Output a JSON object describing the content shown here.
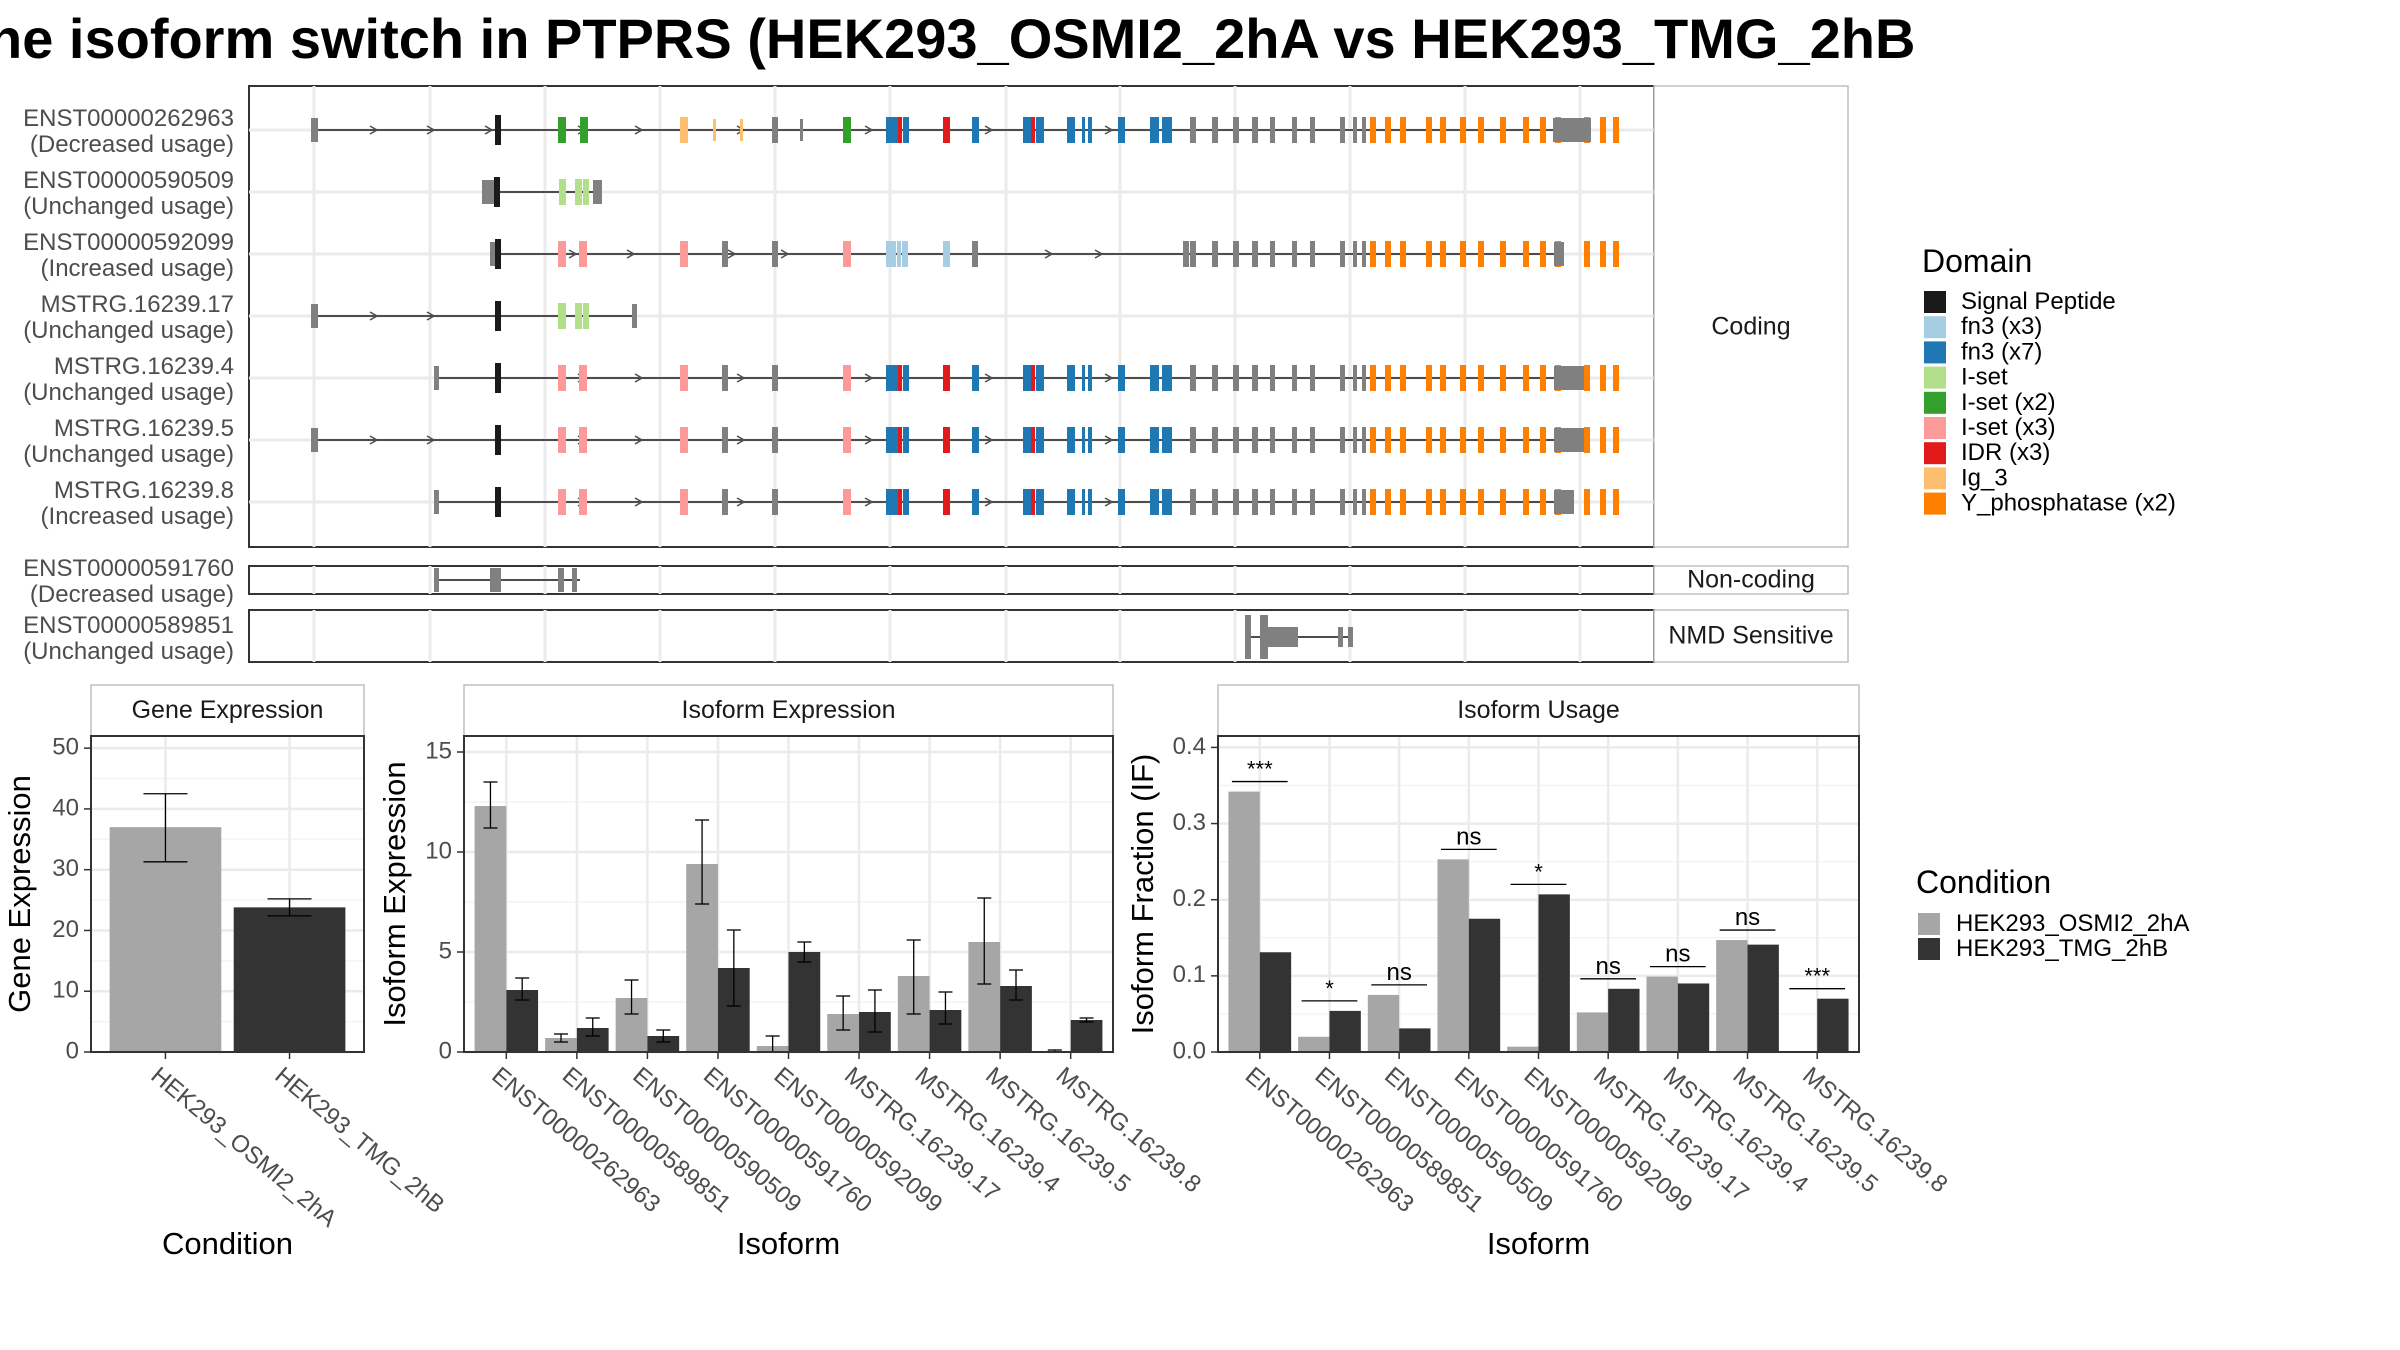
{
  "title": "he isoform switch in PTPRS (HEK293_OSMI2_2hA vs HEK293_TMG_2hB",
  "colors": {
    "signal_peptide": "#1a1a1a",
    "fn3_x3": "#a6cee3",
    "fn3_x7": "#1f78b4",
    "iset": "#b2df8a",
    "iset_x2": "#33a02c",
    "iset_x3": "#fb9a99",
    "idr_x3": "#e31a1c",
    "ig3": "#fdbf6f",
    "yphos": "#ff7f00",
    "nondomain": "#808080",
    "condA": "#a6a6a6",
    "condB": "#333333"
  },
  "transcript_panel": {
    "facets": [
      "Coding",
      "Non-coding",
      "NMD Sensitive"
    ],
    "rows": [
      {
        "id": "ENST00000262963",
        "usage": "(Decreased usage)"
      },
      {
        "id": "ENST00000590509",
        "usage": "(Unchanged usage)"
      },
      {
        "id": "ENST00000592099",
        "usage": "(Increased usage)"
      },
      {
        "id": "MSTRG.16239.17",
        "usage": "(Unchanged usage)"
      },
      {
        "id": "MSTRG.16239.4",
        "usage": "(Unchanged usage)"
      },
      {
        "id": "MSTRG.16239.5",
        "usage": "(Unchanged usage)"
      },
      {
        "id": "MSTRG.16239.8",
        "usage": "(Increased usage)"
      },
      {
        "id": "ENST00000591760",
        "usage": "(Decreased usage)"
      },
      {
        "id": "ENST00000589851",
        "usage": "(Unchanged usage)"
      }
    ]
  },
  "domain_legend": {
    "title": "Domain",
    "items": [
      {
        "label": "Signal Peptide",
        "color": "#1a1a1a"
      },
      {
        "label": "fn3 (x3)",
        "color": "#a6cee3"
      },
      {
        "label": "fn3 (x7)",
        "color": "#1f78b4"
      },
      {
        "label": "I-set",
        "color": "#b2df8a"
      },
      {
        "label": "I-set (x2)",
        "color": "#33a02c"
      },
      {
        "label": "I-set (x3)",
        "color": "#fb9a99"
      },
      {
        "label": "IDR (x3)",
        "color": "#e31a1c"
      },
      {
        "label": "Ig_3",
        "color": "#fdbf6f"
      },
      {
        "label": "Y_phosphatase (x2)",
        "color": "#ff7f00"
      }
    ]
  },
  "condition_legend": {
    "title": "Condition",
    "items": [
      {
        "label": "HEK293_OSMI2_2hA",
        "color": "#a6a6a6"
      },
      {
        "label": "HEK293_TMG_2hB",
        "color": "#333333"
      }
    ]
  },
  "chart_data": [
    {
      "type": "bar",
      "title": "Gene Expression",
      "xlabel": "Condition",
      "ylabel": "Gene Expression",
      "ylim": [
        0,
        52
      ],
      "yticks": [
        0,
        10,
        20,
        30,
        40,
        50
      ],
      "categories": [
        "HEK293_OSMI2_2hA",
        "HEK293_TMG_2hB"
      ],
      "values": [
        37,
        23.8
      ],
      "errors": [
        [
          31.3,
          42.5
        ],
        [
          22.4,
          25.2
        ]
      ]
    },
    {
      "type": "bar",
      "title": "Isoform Expression",
      "xlabel": "Isoform",
      "ylabel": "Isoform Expression",
      "ylim": [
        0,
        15.8
      ],
      "yticks": [
        0,
        5,
        10,
        15
      ],
      "categories": [
        "ENST00000262963",
        "ENST00000589851",
        "ENST00000590509",
        "ENST00000591760",
        "ENST00000592099",
        "MSTRG.16239.17",
        "MSTRG.16239.4",
        "MSTRG.16239.5",
        "MSTRG.16239.8"
      ],
      "series": [
        {
          "name": "HEK293_OSMI2_2hA",
          "values": [
            12.3,
            0.7,
            2.7,
            9.4,
            0.3,
            1.9,
            3.8,
            5.5,
            0.05
          ],
          "errors": [
            [
              11.2,
              13.5
            ],
            [
              0.5,
              0.9
            ],
            [
              1.9,
              3.6
            ],
            [
              7.4,
              11.6
            ],
            [
              0.0,
              0.8
            ],
            [
              1.1,
              2.8
            ],
            [
              1.9,
              5.6
            ],
            [
              3.4,
              7.7
            ],
            [
              0.0,
              0.1
            ]
          ]
        },
        {
          "name": "HEK293_TMG_2hB",
          "values": [
            3.1,
            1.2,
            0.8,
            4.2,
            5.0,
            2.0,
            2.1,
            3.3,
            1.6
          ],
          "errors": [
            [
              2.6,
              3.7
            ],
            [
              0.8,
              1.7
            ],
            [
              0.5,
              1.1
            ],
            [
              2.3,
              6.1
            ],
            [
              4.5,
              5.5
            ],
            [
              1.0,
              3.1
            ],
            [
              1.4,
              3.0
            ],
            [
              2.6,
              4.1
            ],
            [
              1.5,
              1.7
            ]
          ]
        }
      ]
    },
    {
      "type": "bar",
      "title": "Isoform Usage",
      "xlabel": "Isoform",
      "ylabel": "Isoform Fraction (IF)",
      "ylim": [
        0,
        0.415
      ],
      "yticks": [
        0.0,
        0.1,
        0.2,
        0.3,
        0.4
      ],
      "ytick_labels": [
        "0.0",
        "0.1",
        "0.2",
        "0.3",
        "0.4"
      ],
      "categories": [
        "ENST00000262963",
        "ENST00000589851",
        "ENST00000590509",
        "ENST00000591760",
        "ENST00000592099",
        "MSTRG.16239.17",
        "MSTRG.16239.4",
        "MSTRG.16239.5",
        "MSTRG.16239.8"
      ],
      "series": [
        {
          "name": "HEK293_OSMI2_2hA",
          "values": [
            0.342,
            0.02,
            0.075,
            0.253,
            0.007,
            0.052,
            0.099,
            0.147,
            0.0
          ]
        },
        {
          "name": "HEK293_TMG_2hB",
          "values": [
            0.131,
            0.054,
            0.031,
            0.175,
            0.207,
            0.083,
            0.09,
            0.141,
            0.07
          ]
        }
      ],
      "significance": [
        "***",
        "*",
        "ns",
        "ns",
        "*",
        "ns",
        "ns",
        "ns",
        "***"
      ]
    }
  ]
}
